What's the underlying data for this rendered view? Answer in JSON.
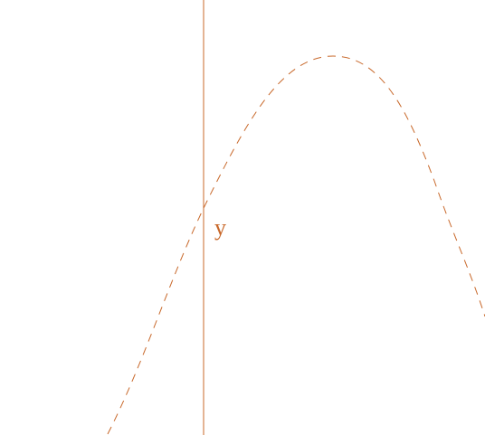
{
  "labels": {
    "curve": "y"
  }
}
